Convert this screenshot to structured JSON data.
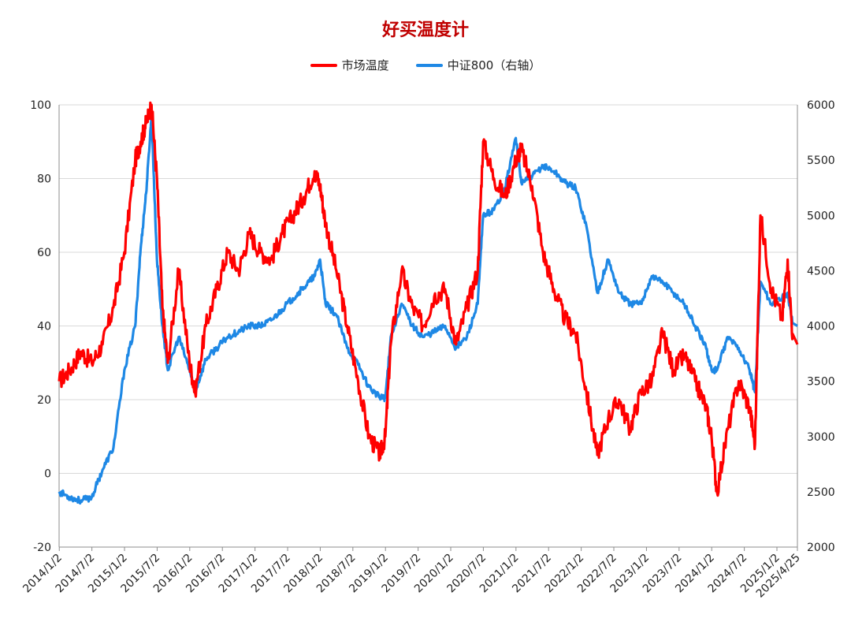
{
  "chart_data": {
    "type": "line",
    "title": "好买温度计",
    "legend_position": "top",
    "grid": true,
    "x_tick_labels": [
      "2014/1/2",
      "2014/7/2",
      "2015/1/2",
      "2015/7/2",
      "2016/1/2",
      "2016/7/2",
      "2017/1/2",
      "2017/7/2",
      "2018/1/2",
      "2018/7/2",
      "2019/1/2",
      "2019/7/2",
      "2020/1/2",
      "2020/7/2",
      "2021/1/2",
      "2021/7/2",
      "2022/1/2",
      "2022/7/2",
      "2023/1/2",
      "2023/7/2",
      "2024/1/2",
      "2024/7/2",
      "2025/1/2",
      "2025/4/25"
    ],
    "y_left": {
      "ticks": [
        "100",
        "80",
        "60",
        "40",
        "20",
        "0",
        "-20"
      ],
      "range": [
        -20,
        100
      ]
    },
    "y_right": {
      "ticks": [
        "6000",
        "5500",
        "5000",
        "4500",
        "4000",
        "3500",
        "3000",
        "2500",
        "2000"
      ],
      "range": [
        2000,
        6000
      ]
    },
    "series": [
      {
        "name": "市场温度",
        "axis": "left",
        "color": "#ff0000",
        "x": [
          "2014-01",
          "2014-03",
          "2014-05",
          "2014-07",
          "2014-09",
          "2014-11",
          "2015-01",
          "2015-03",
          "2015-04",
          "2015-05",
          "2015-06",
          "2015-07",
          "2015-08",
          "2015-09",
          "2015-11",
          "2016-01",
          "2016-02",
          "2016-04",
          "2016-06",
          "2016-08",
          "2016-10",
          "2016-12",
          "2017-02",
          "2017-04",
          "2017-06",
          "2017-08",
          "2017-10",
          "2017-12",
          "2018-01",
          "2018-02",
          "2018-04",
          "2018-06",
          "2018-08",
          "2018-10",
          "2018-12",
          "2019-01",
          "2019-02",
          "2019-04",
          "2019-06",
          "2019-08",
          "2019-10",
          "2019-12",
          "2020-02",
          "2020-04",
          "2020-06",
          "2020-07",
          "2020-09",
          "2020-11",
          "2021-01",
          "2021-02",
          "2021-04",
          "2021-06",
          "2021-08",
          "2021-10",
          "2021-12",
          "2022-02",
          "2022-04",
          "2022-06",
          "2022-08",
          "2022-10",
          "2022-12",
          "2023-02",
          "2023-04",
          "2023-06",
          "2023-08",
          "2023-10",
          "2023-12",
          "2024-01",
          "2024-02",
          "2024-04",
          "2024-06",
          "2024-08",
          "2024-09",
          "2024-10",
          "2024-12",
          "2025-02",
          "2025-03",
          "2025-04"
        ],
        "y": [
          25,
          28,
          33,
          30,
          35,
          45,
          60,
          85,
          90,
          95,
          100,
          80,
          45,
          30,
          55,
          30,
          22,
          40,
          50,
          60,
          55,
          65,
          60,
          58,
          65,
          70,
          75,
          82,
          78,
          68,
          55,
          40,
          25,
          10,
          5,
          10,
          35,
          55,
          45,
          40,
          48,
          50,
          35,
          45,
          55,
          90,
          80,
          75,
          85,
          88,
          78,
          60,
          50,
          42,
          38,
          22,
          5,
          15,
          20,
          12,
          22,
          25,
          38,
          28,
          32,
          25,
          18,
          10,
          -5,
          12,
          25,
          18,
          8,
          70,
          50,
          42,
          58,
          35
        ]
      },
      {
        "name": "中证800（右轴）",
        "axis": "right",
        "color": "#1e88e5",
        "x": [
          "2014-01",
          "2014-03",
          "2014-05",
          "2014-07",
          "2014-09",
          "2014-11",
          "2015-01",
          "2015-03",
          "2015-04",
          "2015-05",
          "2015-06",
          "2015-07",
          "2015-08",
          "2015-09",
          "2015-11",
          "2016-01",
          "2016-02",
          "2016-04",
          "2016-06",
          "2016-08",
          "2016-10",
          "2016-12",
          "2017-02",
          "2017-04",
          "2017-06",
          "2017-08",
          "2017-10",
          "2017-12",
          "2018-01",
          "2018-02",
          "2018-04",
          "2018-06",
          "2018-08",
          "2018-10",
          "2018-12",
          "2019-01",
          "2019-02",
          "2019-04",
          "2019-06",
          "2019-08",
          "2019-10",
          "2019-12",
          "2020-02",
          "2020-04",
          "2020-06",
          "2020-07",
          "2020-09",
          "2020-11",
          "2021-01",
          "2021-02",
          "2021-04",
          "2021-06",
          "2021-08",
          "2021-10",
          "2021-12",
          "2022-02",
          "2022-04",
          "2022-06",
          "2022-08",
          "2022-10",
          "2022-12",
          "2023-02",
          "2023-04",
          "2023-06",
          "2023-08",
          "2023-10",
          "2023-12",
          "2024-01",
          "2024-02",
          "2024-04",
          "2024-06",
          "2024-08",
          "2024-09",
          "2024-10",
          "2024-12",
          "2025-02",
          "2025-03",
          "2025-04"
        ],
        "y": [
          2500,
          2450,
          2420,
          2450,
          2700,
          2900,
          3600,
          4000,
          4700,
          5200,
          5900,
          4600,
          4000,
          3600,
          3900,
          3600,
          3400,
          3700,
          3800,
          3900,
          3950,
          4000,
          4000,
          4050,
          4150,
          4250,
          4350,
          4450,
          4600,
          4200,
          4100,
          3800,
          3650,
          3450,
          3350,
          3350,
          3900,
          4200,
          4000,
          3900,
          3950,
          4000,
          3800,
          3900,
          4200,
          5000,
          5050,
          5250,
          5700,
          5300,
          5350,
          5450,
          5400,
          5300,
          5250,
          4900,
          4300,
          4600,
          4300,
          4200,
          4200,
          4450,
          4400,
          4300,
          4200,
          4000,
          3800,
          3600,
          3600,
          3900,
          3800,
          3600,
          3400,
          4400,
          4200,
          4250,
          4300,
          4000
        ]
      }
    ]
  }
}
